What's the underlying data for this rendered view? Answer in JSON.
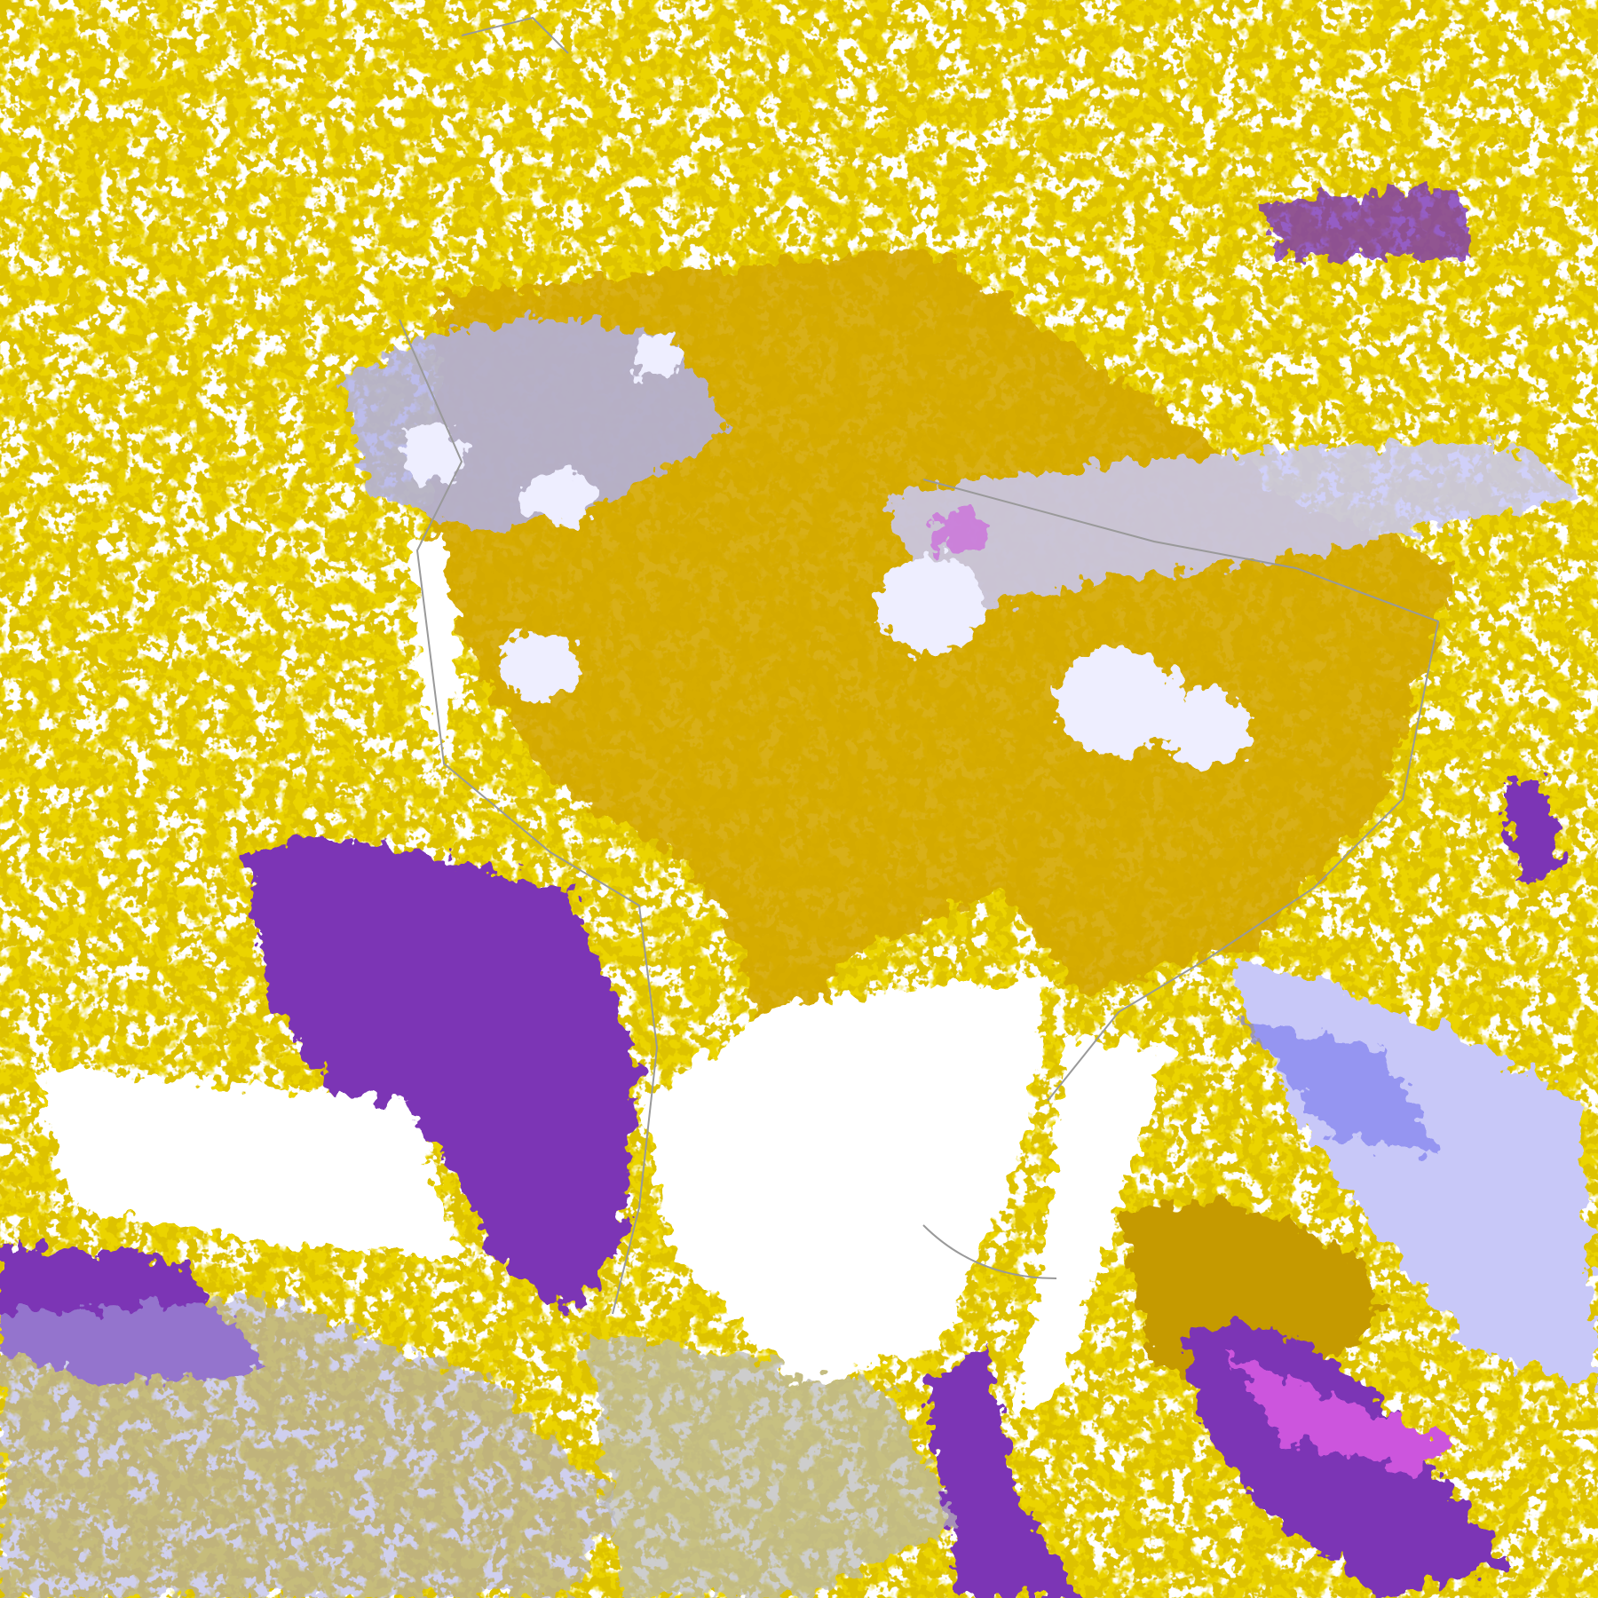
{
  "map": {
    "type": "satellite cloud-type classification",
    "colors": {
      "clear": "#ffffff",
      "low_cloud": "#d4a800",
      "low_cloud_dark": "#b88a00",
      "mid_cloud": "#7b35b5",
      "high_cloud_magenta": "#cc55dd",
      "cirrus_blue": "#7f7fee",
      "thick_cloud_lavender": "#c8c8f8",
      "deep_convection": "#eeeeff",
      "coastline_gray": "#999999"
    }
  }
}
